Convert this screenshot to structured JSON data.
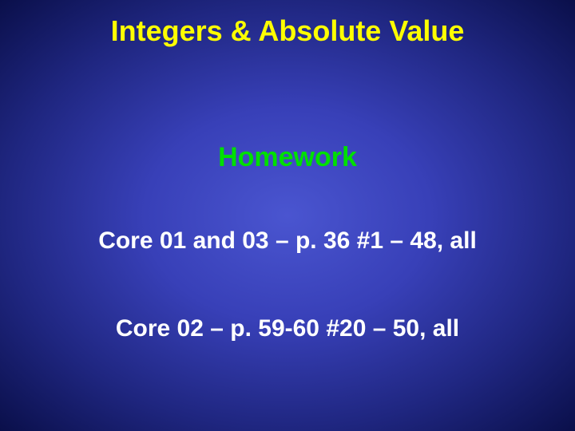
{
  "slide": {
    "title": "Integers & Absolute Value",
    "subtitle": "Homework",
    "line1": "Core 01 and 03 – p. 36 #1 – 48, all",
    "line2": "Core 02 – p. 59-60 #20 – 50, all"
  },
  "style": {
    "title_color": "#ffff00",
    "title_fontsize": 36,
    "subtitle_color": "#00e000",
    "subtitle_fontsize": 34,
    "body_color": "#ffffff",
    "body_fontsize": 30,
    "bg_center": "#4a55d0",
    "bg_edge": "#0a0f4a"
  }
}
